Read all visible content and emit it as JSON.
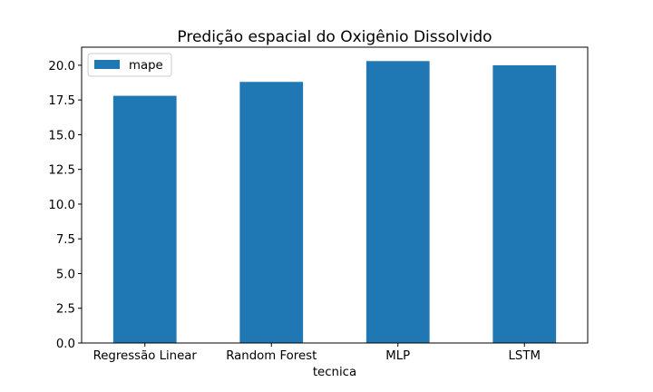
{
  "chart_data": {
    "type": "bar",
    "title": "Predição espacial do Oxigênio Dissolvido",
    "xlabel": "tecnica",
    "ylabel": "",
    "categories": [
      "Regressão Linear",
      "Random Forest",
      "MLP",
      "LSTM"
    ],
    "series": [
      {
        "name": "mape",
        "values": [
          17.8,
          18.8,
          20.3,
          20.0
        ],
        "color": "#1f77b4"
      }
    ],
    "ylim": [
      0,
      21.3
    ],
    "yticks": [
      0.0,
      2.5,
      5.0,
      7.5,
      10.0,
      12.5,
      15.0,
      17.5,
      20.0
    ],
    "ytick_labels": [
      "0.0",
      "2.5",
      "5.0",
      "7.5",
      "10.0",
      "12.5",
      "15.0",
      "17.5",
      "20.0"
    ],
    "grid": false,
    "legend_position": "upper left"
  }
}
